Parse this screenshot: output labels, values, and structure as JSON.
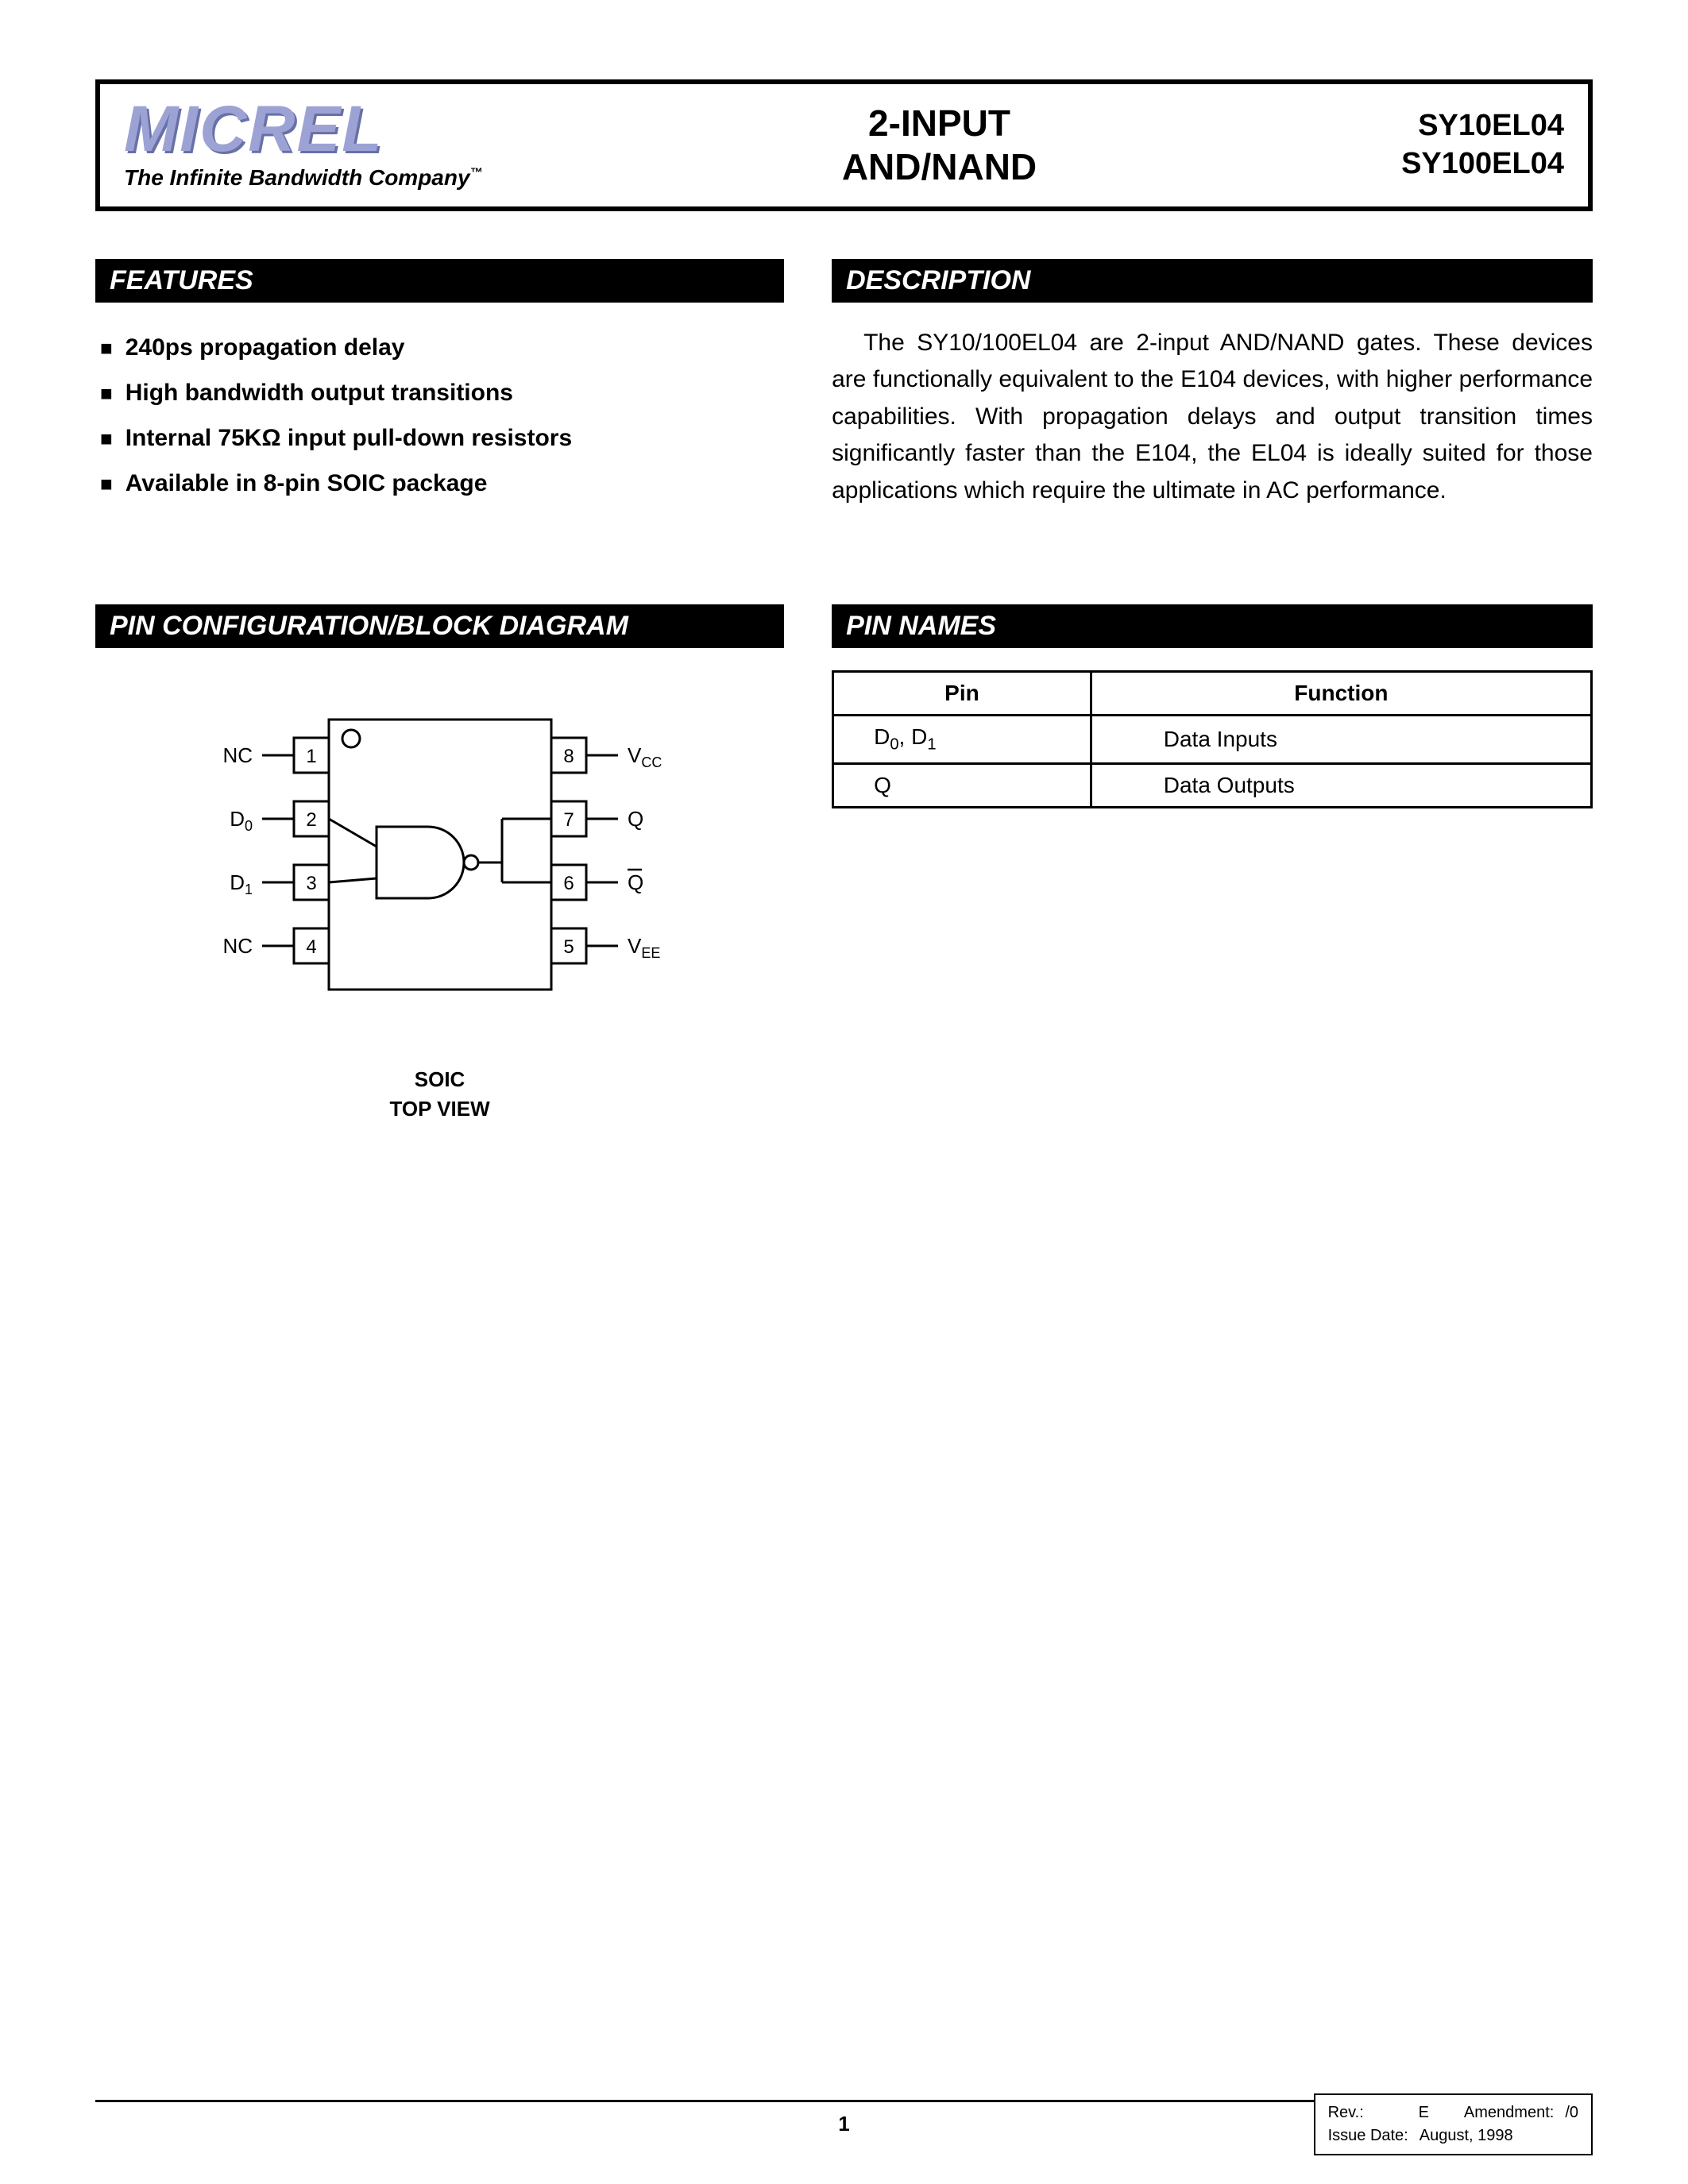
{
  "header": {
    "logo_text": "MICREL",
    "tagline": "The Infinite Bandwidth Company",
    "tagline_tm": "™",
    "title_line1": "2-INPUT",
    "title_line2": "AND/NAND",
    "part1": "SY10EL04",
    "part2": "SY100EL04"
  },
  "sections": {
    "features_title": "FEATURES",
    "description_title": "DESCRIPTION",
    "pinconfig_title": "PIN CONFIGURATION/BLOCK DIAGRAM",
    "pinnames_title": "PIN NAMES"
  },
  "features": [
    "240ps propagation delay",
    "High bandwidth output transitions",
    "Internal 75KΩ input pull-down resistors",
    "Available in 8-pin SOIC package"
  ],
  "description": "The SY10/100EL04 are 2-input AND/NAND gates. These devices are functionally equivalent to the E104 devices, with higher performance capabilities. With propagation delays and output transition times significantly faster than the E104, the EL04 is ideally suited for those applications which require the ultimate in AC performance.",
  "pin_table": {
    "col1": "Pin",
    "col2": "Function",
    "rows": [
      {
        "pin_html": "D<span class='sub'>0</span>, D<span class='sub'>1</span>",
        "func": "Data Inputs"
      },
      {
        "pin_html": "Q",
        "func": "Data Outputs"
      }
    ]
  },
  "diagram": {
    "caption_line1": "SOIC",
    "caption_line2": "TOP VIEW",
    "pins_left": [
      {
        "n": "1",
        "lab": "NC"
      },
      {
        "n": "2",
        "lab": "D0",
        "sub": "0",
        "base": "D"
      },
      {
        "n": "3",
        "lab": "D1",
        "sub": "1",
        "base": "D"
      },
      {
        "n": "4",
        "lab": "NC"
      }
    ],
    "pins_right": [
      {
        "n": "8",
        "lab": "VCC",
        "sub": "CC",
        "base": "V"
      },
      {
        "n": "7",
        "lab": "Q"
      },
      {
        "n": "6",
        "lab": "Q",
        "bar": true
      },
      {
        "n": "5",
        "lab": "VEE",
        "sub": "EE",
        "base": "V"
      }
    ],
    "colors": {
      "stroke": "#000000",
      "fill": "#ffffff"
    }
  },
  "footer": {
    "page": "1",
    "rev_label": "Rev.:",
    "rev_val": "E",
    "amend_label": "Amendment:",
    "amend_val": "/0",
    "issue_label": "Issue Date:",
    "issue_val": "August, 1998"
  }
}
